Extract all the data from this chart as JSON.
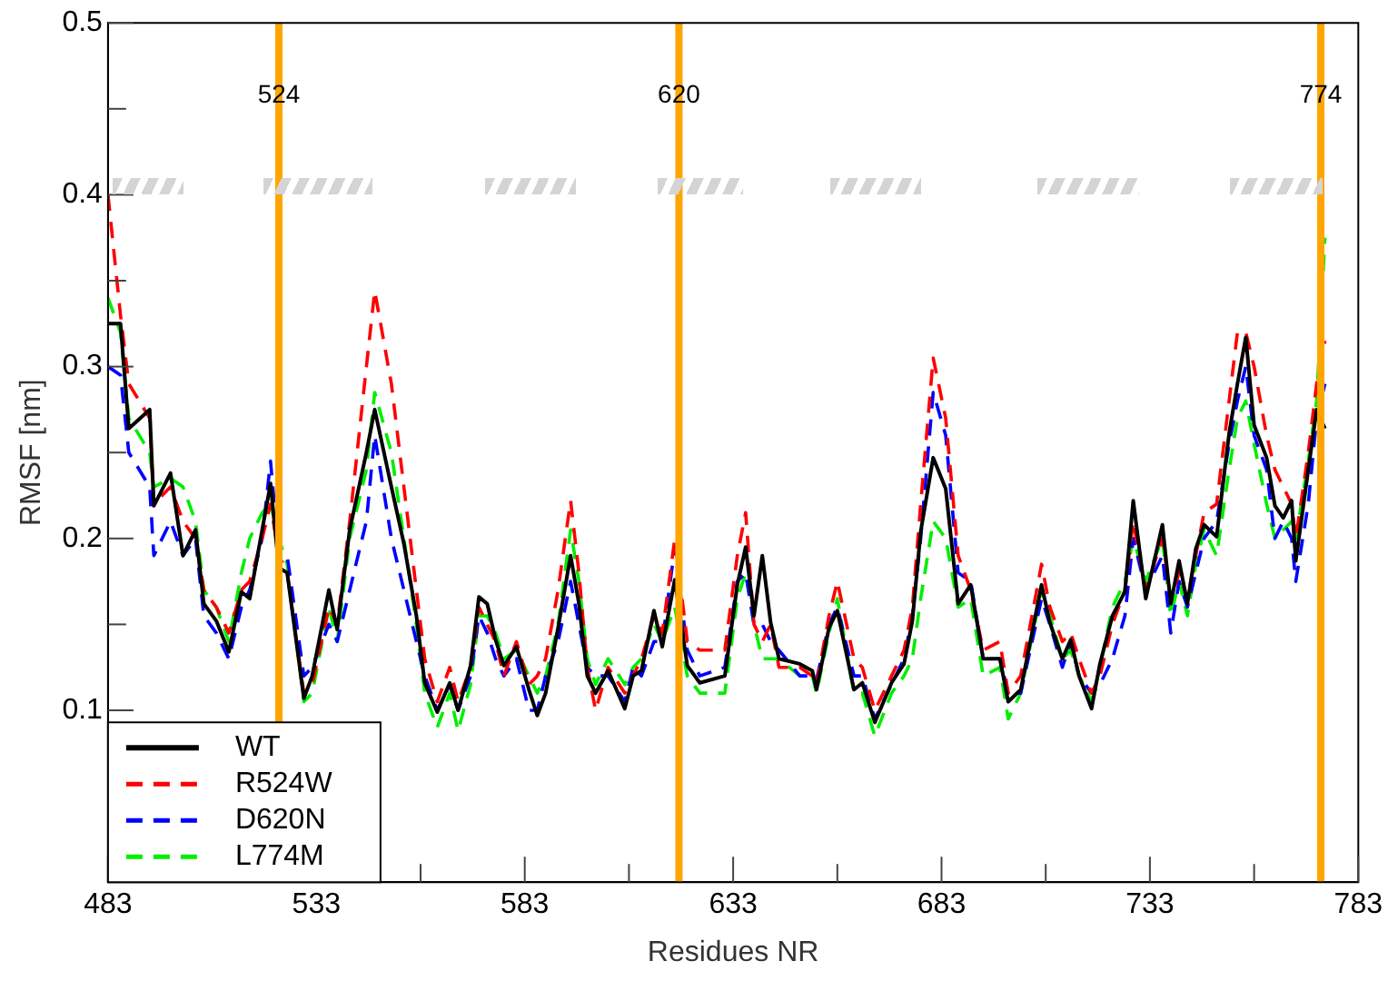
{
  "chart_data": {
    "type": "line",
    "xlabel": "Residues NR",
    "ylabel": "RMSF [nm]",
    "x": [
      483,
      486,
      488,
      493,
      494,
      498,
      501,
      504,
      506,
      509,
      512,
      515,
      517,
      520,
      522,
      524,
      526,
      530,
      532,
      536,
      538,
      541,
      545,
      547,
      551,
      554,
      557,
      559,
      562,
      565,
      567,
      570,
      572,
      574,
      576,
      578,
      581,
      584,
      586,
      588,
      591,
      594,
      596,
      598,
      600,
      603,
      607,
      609,
      611,
      614,
      616,
      619,
      622,
      625,
      631,
      634,
      636,
      638,
      640,
      642,
      644,
      649,
      652,
      653,
      656,
      658,
      662,
      664,
      667,
      671,
      674,
      676,
      678,
      681,
      684,
      687,
      690,
      693,
      697,
      699,
      702,
      707,
      709,
      712,
      714,
      716,
      719,
      721,
      724,
      727,
      729,
      732,
      736,
      738,
      740,
      742,
      744,
      746,
      749,
      752,
      754,
      756,
      758,
      761,
      763,
      765,
      767,
      768,
      771,
      773,
      775
    ],
    "series": [
      {
        "name": "WT",
        "color": "#000000",
        "line_style": "solid",
        "values": [
          0.325,
          0.325,
          0.264,
          0.275,
          0.219,
          0.238,
          0.19,
          0.205,
          0.162,
          0.152,
          0.134,
          0.169,
          0.165,
          0.205,
          0.232,
          0.183,
          0.18,
          0.107,
          0.12,
          0.17,
          0.147,
          0.205,
          0.25,
          0.275,
          0.23,
          0.197,
          0.155,
          0.116,
          0.099,
          0.116,
          0.1,
          0.126,
          0.166,
          0.162,
          0.141,
          0.126,
          0.137,
          0.112,
          0.097,
          0.11,
          0.148,
          0.19,
          0.162,
          0.12,
          0.11,
          0.123,
          0.101,
          0.12,
          0.123,
          0.158,
          0.137,
          0.176,
          0.126,
          0.116,
          0.12,
          0.173,
          0.195,
          0.155,
          0.19,
          0.151,
          0.13,
          0.127,
          0.123,
          0.112,
          0.148,
          0.158,
          0.112,
          0.116,
          0.093,
          0.116,
          0.127,
          0.152,
          0.204,
          0.247,
          0.229,
          0.162,
          0.173,
          0.13,
          0.13,
          0.105,
          0.112,
          0.173,
          0.151,
          0.13,
          0.141,
          0.12,
          0.101,
          0.127,
          0.155,
          0.169,
          0.222,
          0.165,
          0.208,
          0.162,
          0.187,
          0.162,
          0.194,
          0.208,
          0.201,
          0.261,
          0.29,
          0.317,
          0.266,
          0.247,
          0.219,
          0.212,
          0.222,
          0.187,
          0.24,
          0.275,
          0.264
        ]
      },
      {
        "name": "R524W",
        "color": "#ff0000",
        "line_style": "dashed",
        "values": [
          0.4,
          0.33,
          0.29,
          0.27,
          0.22,
          0.23,
          0.21,
          0.2,
          0.17,
          0.16,
          0.145,
          0.17,
          0.175,
          0.2,
          0.22,
          0.19,
          0.18,
          0.11,
          0.115,
          0.16,
          0.15,
          0.21,
          0.3,
          0.344,
          0.29,
          0.23,
          0.17,
          0.13,
          0.105,
          0.125,
          0.105,
          0.125,
          0.16,
          0.15,
          0.14,
          0.12,
          0.14,
          0.115,
          0.12,
          0.13,
          0.17,
          0.222,
          0.18,
          0.125,
          0.1,
          0.125,
          0.11,
          0.12,
          0.13,
          0.155,
          0.145,
          0.2,
          0.14,
          0.135,
          0.135,
          0.19,
          0.215,
          0.15,
          0.14,
          0.15,
          0.125,
          0.125,
          0.12,
          0.115,
          0.155,
          0.175,
          0.13,
          0.125,
          0.1,
          0.12,
          0.135,
          0.16,
          0.22,
          0.305,
          0.27,
          0.19,
          0.17,
          0.135,
          0.14,
          0.11,
          0.12,
          0.185,
          0.16,
          0.14,
          0.145,
          0.13,
          0.11,
          0.12,
          0.15,
          0.17,
          0.21,
          0.17,
          0.2,
          0.165,
          0.18,
          0.165,
          0.19,
          0.215,
          0.22,
          0.28,
          0.32,
          0.32,
          0.3,
          0.26,
          0.24,
          0.23,
          0.22,
          0.2,
          0.25,
          0.29,
          0.315
        ]
      },
      {
        "name": "D620N",
        "color": "#0000ff",
        "line_style": "dashed",
        "values": [
          0.3,
          0.295,
          0.25,
          0.23,
          0.19,
          0.21,
          0.19,
          0.2,
          0.155,
          0.145,
          0.13,
          0.16,
          0.17,
          0.2,
          0.245,
          0.19,
          0.19,
          0.12,
          0.125,
          0.15,
          0.14,
          0.17,
          0.21,
          0.26,
          0.2,
          0.17,
          0.14,
          0.12,
          0.1,
          0.115,
          0.1,
          0.12,
          0.155,
          0.145,
          0.13,
          0.12,
          0.13,
          0.1,
          0.1,
          0.12,
          0.14,
          0.175,
          0.15,
          0.125,
          0.12,
          0.12,
          0.105,
          0.125,
          0.12,
          0.14,
          0.14,
          0.195,
          0.135,
          0.12,
          0.125,
          0.175,
          0.18,
          0.15,
          0.15,
          0.14,
          0.135,
          0.12,
          0.12,
          0.118,
          0.15,
          0.16,
          0.12,
          0.12,
          0.095,
          0.115,
          0.13,
          0.155,
          0.2,
          0.285,
          0.26,
          0.18,
          0.175,
          0.13,
          0.13,
          0.11,
          0.11,
          0.165,
          0.15,
          0.125,
          0.14,
          0.12,
          0.11,
          0.115,
          0.13,
          0.155,
          0.2,
          0.17,
          0.19,
          0.145,
          0.175,
          0.16,
          0.18,
          0.2,
          0.21,
          0.255,
          0.28,
          0.3,
          0.26,
          0.24,
          0.2,
          0.21,
          0.2,
          0.175,
          0.22,
          0.27,
          0.29
        ]
      },
      {
        "name": "L774M",
        "color": "#00ee00",
        "line_style": "dashed",
        "values": [
          0.34,
          0.32,
          0.27,
          0.25,
          0.23,
          0.235,
          0.23,
          0.21,
          0.17,
          0.16,
          0.14,
          0.18,
          0.2,
          0.215,
          0.22,
          0.2,
          0.185,
          0.105,
          0.11,
          0.16,
          0.14,
          0.2,
          0.24,
          0.285,
          0.25,
          0.2,
          0.15,
          0.11,
          0.09,
          0.11,
          0.088,
          0.115,
          0.155,
          0.155,
          0.145,
          0.13,
          0.135,
          0.12,
          0.11,
          0.12,
          0.15,
          0.205,
          0.175,
          0.13,
          0.115,
          0.13,
          0.115,
          0.125,
          0.13,
          0.15,
          0.14,
          0.16,
          0.12,
          0.11,
          0.11,
          0.165,
          0.18,
          0.15,
          0.13,
          0.13,
          0.13,
          0.12,
          0.12,
          0.11,
          0.145,
          0.165,
          0.11,
          0.11,
          0.085,
          0.11,
          0.12,
          0.13,
          0.165,
          0.21,
          0.2,
          0.16,
          0.165,
          0.12,
          0.125,
          0.095,
          0.11,
          0.17,
          0.155,
          0.13,
          0.135,
          0.12,
          0.105,
          0.125,
          0.16,
          0.175,
          0.2,
          0.175,
          0.2,
          0.155,
          0.175,
          0.155,
          0.185,
          0.205,
          0.19,
          0.24,
          0.27,
          0.28,
          0.255,
          0.22,
          0.2,
          0.205,
          0.21,
          0.2,
          0.245,
          0.28,
          0.375
        ]
      }
    ],
    "xlim": [
      483,
      783
    ],
    "xticks": [
      483,
      {
        "value": 508,
        "label": null
      },
      533,
      {
        "value": 558,
        "label": null
      },
      583,
      {
        "value": 608,
        "label": null
      },
      633,
      {
        "value": 658,
        "label": null
      },
      683,
      {
        "value": 708,
        "label": null
      },
      733,
      {
        "value": 758,
        "label": null
      },
      783
    ],
    "ylim": [
      0,
      0.5
    ],
    "yticks": [
      0.1,
      {
        "value": 0.15,
        "label": null
      },
      0.2,
      {
        "value": 0.25,
        "label": null
      },
      0.3,
      {
        "value": 0.35,
        "label": null
      },
      0.4,
      {
        "value": 0.45,
        "label": null
      },
      0.5
    ],
    "ref_lines": [
      {
        "axis": "x",
        "value": 524,
        "label": "524",
        "color": "#ffa500"
      },
      {
        "axis": "x",
        "value": 620,
        "label": "620",
        "color": "#ffa500"
      },
      {
        "axis": "x",
        "value": 774,
        "label": "774",
        "color": "#ffa500"
      }
    ],
    "legend": "bottom left",
    "grid": false,
    "marker": "none"
  }
}
